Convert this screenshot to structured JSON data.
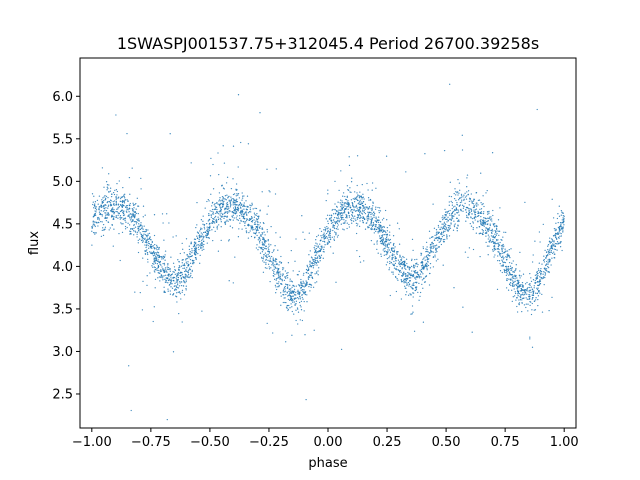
{
  "chart_data": {
    "type": "scatter",
    "title": "1SWASPJ001537.75+312045.4 Period 26700.39258s",
    "xlabel": "phase",
    "ylabel": "flux",
    "xlim": [
      -1.05,
      1.05
    ],
    "ylim": [
      2.1,
      6.45
    ],
    "xticks": [
      -1.0,
      -0.75,
      -0.5,
      -0.25,
      0.0,
      0.25,
      0.5,
      0.75,
      1.0
    ],
    "xtick_labels": [
      "−1.00",
      "−0.75",
      "−0.50",
      "−0.25",
      "0.00",
      "0.25",
      "0.50",
      "0.75",
      "1.00"
    ],
    "yticks": [
      2.5,
      3.0,
      3.5,
      4.0,
      4.5,
      5.0,
      5.5,
      6.0
    ],
    "ytick_labels": [
      "2.5",
      "3.0",
      "3.5",
      "4.0",
      "4.5",
      "5.0",
      "5.5",
      "6.0"
    ],
    "grid": false,
    "legend": "none",
    "series": [
      {
        "color": "#1f77b4",
        "marker": "dot",
        "x": [
          -1.0,
          -0.95,
          -0.9,
          -0.85,
          -0.8,
          -0.75,
          -0.7,
          -0.65,
          -0.6,
          -0.55,
          -0.5,
          -0.45,
          -0.4,
          -0.35,
          -0.3,
          -0.25,
          -0.2,
          -0.15,
          -0.1,
          -0.05,
          0.0,
          0.05,
          0.1,
          0.15,
          0.2,
          0.25,
          0.3,
          0.35,
          0.4,
          0.45,
          0.5,
          0.55,
          0.6,
          0.65,
          0.7,
          0.75,
          0.8,
          0.85,
          0.9,
          0.95,
          1.0
        ],
        "y": [
          4.55,
          4.68,
          4.72,
          4.65,
          4.45,
          4.2,
          3.95,
          3.82,
          3.95,
          4.25,
          4.52,
          4.68,
          4.7,
          4.62,
          4.45,
          4.15,
          3.85,
          3.62,
          3.75,
          4.1,
          4.4,
          4.62,
          4.72,
          4.68,
          4.5,
          4.25,
          4.0,
          3.82,
          3.95,
          4.25,
          4.52,
          4.68,
          4.7,
          4.6,
          4.35,
          4.05,
          3.75,
          3.62,
          3.85,
          4.25,
          4.55
        ]
      }
    ]
  }
}
